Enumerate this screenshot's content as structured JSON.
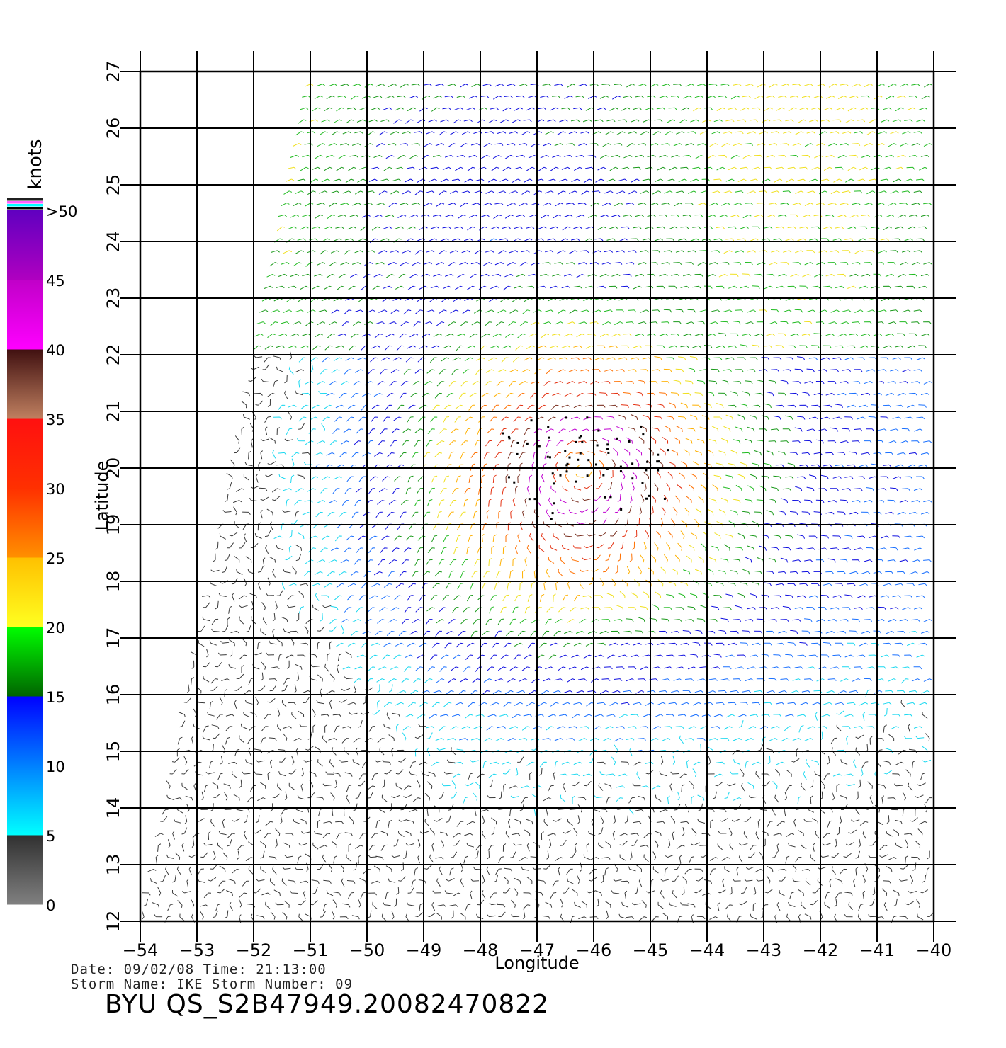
{
  "chart_data": {
    "type": "wind-vector-map",
    "xlabel": "Longitude",
    "ylabel": "Latitude",
    "xlim": [
      -54,
      -40
    ],
    "ylim": [
      12,
      27
    ],
    "x_ticks": [
      "-54",
      "-53",
      "-52",
      "-51",
      "-50",
      "-49",
      "-48",
      "-47",
      "-46",
      "-45",
      "-44",
      "-43",
      "-42",
      "-41",
      "-40"
    ],
    "y_ticks": [
      "12",
      "13",
      "14",
      "15",
      "16",
      "17",
      "18",
      "19",
      "20",
      "21",
      "22",
      "23",
      "24",
      "25",
      "26",
      "27"
    ],
    "grid": true,
    "storm_center": {
      "lon": -46.2,
      "lat": 20.0
    },
    "swath_western_edge": [
      [
        -51.0,
        27.0
      ],
      [
        -54.0,
        12.0
      ]
    ],
    "colorbar": {
      "unit_label": "knots",
      "tick_labels": [
        "0",
        "5",
        "10",
        "15",
        "20",
        "25",
        "30",
        "35",
        "40",
        "45",
        ">50"
      ],
      "bins": [
        {
          "min": 0,
          "max": 5,
          "color_low": "#808080",
          "color_high": "#303030"
        },
        {
          "min": 5,
          "max": 10,
          "color_low": "#00ffff",
          "color_high": "#0080ff"
        },
        {
          "min": 10,
          "max": 15,
          "color_low": "#0080ff",
          "color_high": "#0000ff"
        },
        {
          "min": 15,
          "max": 20,
          "color_low": "#006400",
          "color_high": "#00ff00"
        },
        {
          "min": 20,
          "max": 25,
          "color_low": "#ffff20",
          "color_high": "#ffc000"
        },
        {
          "min": 25,
          "max": 30,
          "color_low": "#ff9000",
          "color_high": "#ff3000"
        },
        {
          "min": 30,
          "max": 35,
          "color_low": "#ff3000",
          "color_high": "#ff1010"
        },
        {
          "min": 35,
          "max": 40,
          "color_low": "#c08060",
          "color_high": "#401010"
        },
        {
          "min": 40,
          "max": 45,
          "color_low": "#ff00ff",
          "color_high": "#c000c8"
        },
        {
          "min": 45,
          "max": 50,
          "color_low": "#b000c0",
          "color_high": "#6000c0"
        }
      ]
    }
  },
  "meta": {
    "date_line": "Date: 09/02/08   Time: 21:13:00",
    "storm_line": "Storm  Name: IKE    Storm  Number: 09",
    "product_id": "BYU  QS_S2B47949.20082470822"
  }
}
